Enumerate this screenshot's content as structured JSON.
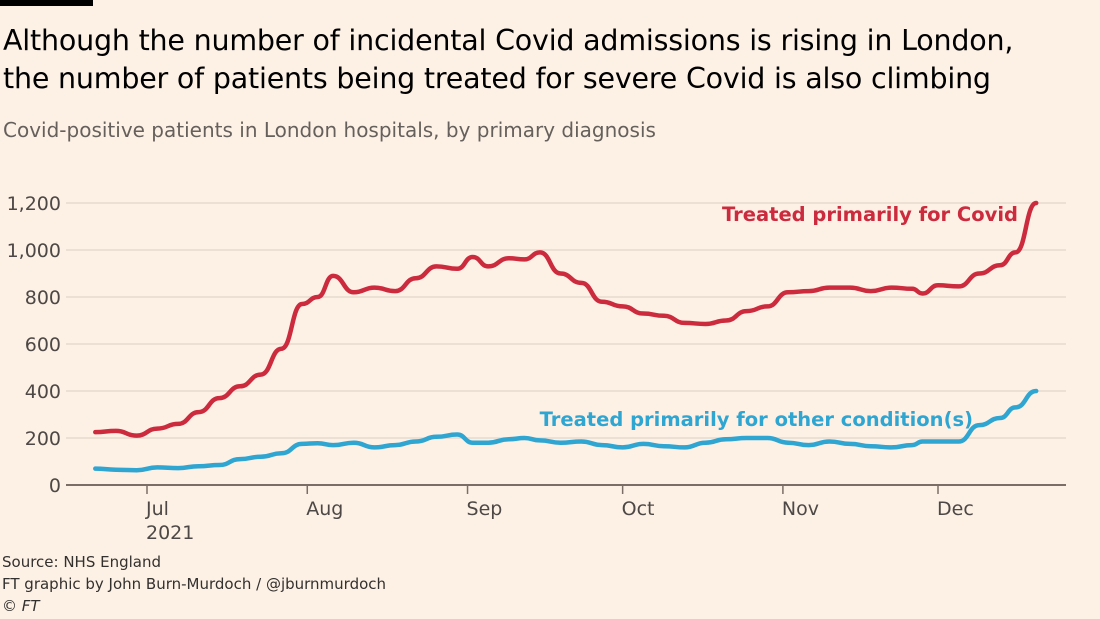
{
  "header": {
    "title_line1": "Although the number of incidental Covid admissions is rising in London,",
    "title_line2": "the number of patients being treated for severe Covid is also climbing",
    "subtitle": "Covid-positive patients in London hospitals, by primary diagnosis"
  },
  "footer": {
    "source": "Source: NHS England",
    "credit": "FT graphic by John Burn-Murdoch / @jburnmurdoch",
    "copyright": "© FT"
  },
  "colors": {
    "background": "#fdf1e6",
    "covid": "#cc2a3d",
    "other": "#2fa5d2",
    "grid": "#e6d9ce",
    "axis": "#7a6e66"
  },
  "chart_data": {
    "type": "line",
    "title": "Although the number of incidental Covid admissions is rising in London, the number of patients being treated for severe Covid is also climbing",
    "subtitle": "Covid-positive patients in London hospitals, by primary diagnosis",
    "xlabel": "",
    "ylabel": "",
    "ylim": [
      0,
      1200
    ],
    "yticks": [
      0,
      200,
      400,
      600,
      800,
      1000,
      1200
    ],
    "ytick_labels": [
      "0",
      "200",
      "400",
      "600",
      "800",
      "1,000",
      "1,200"
    ],
    "xlim": [
      "2021-06-16",
      "2021-12-24"
    ],
    "xticks": [
      "2021-07-01",
      "2021-08-01",
      "2021-09-01",
      "2021-10-01",
      "2021-11-01",
      "2021-12-01"
    ],
    "xtick_labels": [
      "Jul\n2021",
      "Aug",
      "Sep",
      "Oct",
      "Nov",
      "Dec"
    ],
    "grid": true,
    "legend": "direct-labels",
    "x": [
      "2021-06-21",
      "2021-06-25",
      "2021-06-29",
      "2021-07-03",
      "2021-07-07",
      "2021-07-11",
      "2021-07-15",
      "2021-07-19",
      "2021-07-23",
      "2021-07-27",
      "2021-07-31",
      "2021-08-03",
      "2021-08-06",
      "2021-08-10",
      "2021-08-14",
      "2021-08-18",
      "2021-08-22",
      "2021-08-26",
      "2021-08-30",
      "2021-09-02",
      "2021-09-05",
      "2021-09-09",
      "2021-09-12",
      "2021-09-15",
      "2021-09-19",
      "2021-09-23",
      "2021-09-27",
      "2021-10-01",
      "2021-10-05",
      "2021-10-09",
      "2021-10-13",
      "2021-10-17",
      "2021-10-21",
      "2021-10-25",
      "2021-10-29",
      "2021-11-02",
      "2021-11-06",
      "2021-11-10",
      "2021-11-14",
      "2021-11-18",
      "2021-11-22",
      "2021-11-26",
      "2021-11-28",
      "2021-12-01",
      "2021-12-05",
      "2021-12-09",
      "2021-12-13",
      "2021-12-16",
      "2021-12-20"
    ],
    "series": [
      {
        "name": "Treated primarily for Covid",
        "color": "#cc2a3d",
        "values": [
          225,
          230,
          210,
          240,
          260,
          310,
          370,
          420,
          470,
          580,
          770,
          800,
          890,
          820,
          840,
          825,
          880,
          930,
          920,
          970,
          930,
          965,
          960,
          990,
          900,
          860,
          780,
          760,
          730,
          720,
          690,
          685,
          700,
          740,
          760,
          820,
          825,
          840,
          840,
          825,
          840,
          835,
          815,
          850,
          845,
          900,
          935,
          990,
          1200
        ]
      },
      {
        "name": "Treated primarily for other condition(s)",
        "color": "#2fa5d2",
        "values": [
          70,
          65,
          63,
          75,
          72,
          80,
          85,
          110,
          120,
          135,
          175,
          178,
          170,
          180,
          160,
          170,
          185,
          205,
          215,
          180,
          180,
          195,
          200,
          190,
          180,
          185,
          170,
          160,
          175,
          165,
          160,
          180,
          195,
          200,
          200,
          180,
          170,
          185,
          175,
          165,
          160,
          170,
          185,
          185,
          185,
          255,
          285,
          330,
          400
        ]
      }
    ],
    "annotations": [
      {
        "text": "Treated primarily for Covid",
        "series": 0
      },
      {
        "text": "Treated primarily for other condition(s)",
        "series": 1
      }
    ]
  }
}
